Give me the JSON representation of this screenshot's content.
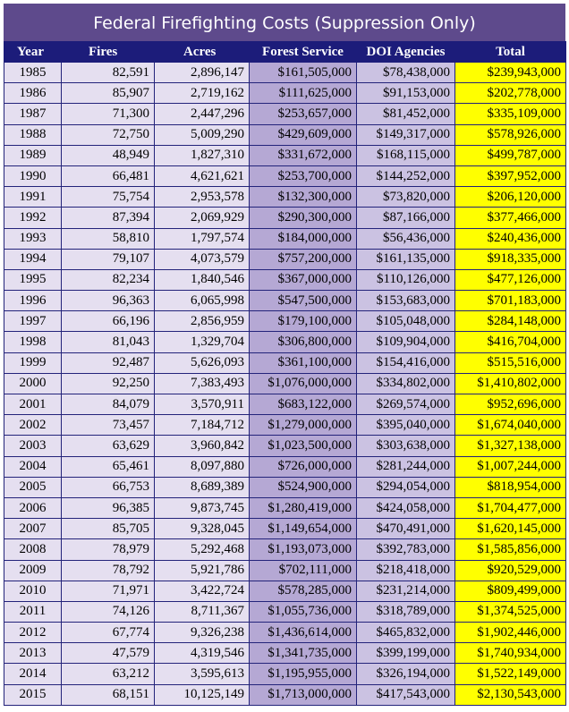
{
  "title": "Federal Firefighting Costs (Suppression Only)",
  "table": {
    "header": [
      "Year",
      "Fires",
      "Acres",
      "Forest Service",
      "DOI Agencies",
      "Total"
    ],
    "rows": [
      [
        "1985",
        "82,591",
        "2,896,147",
        "$161,505,000",
        "$78,438,000",
        "$239,943,000"
      ],
      [
        "1986",
        "85,907",
        "2,719,162",
        "$111,625,000",
        "$91,153,000",
        "$202,778,000"
      ],
      [
        "1987",
        "71,300",
        "2,447,296",
        "$253,657,000",
        "$81,452,000",
        "$335,109,000"
      ],
      [
        "1988",
        "72,750",
        "5,009,290",
        "$429,609,000",
        "$149,317,000",
        "$578,926,000"
      ],
      [
        "1989",
        "48,949",
        "1,827,310",
        "$331,672,000",
        "$168,115,000",
        "$499,787,000"
      ],
      [
        "1990",
        "66,481",
        "4,621,621",
        "$253,700,000",
        "$144,252,000",
        "$397,952,000"
      ],
      [
        "1991",
        "75,754",
        "2,953,578",
        "$132,300,000",
        "$73,820,000",
        "$206,120,000"
      ],
      [
        "1992",
        "87,394",
        "2,069,929",
        "$290,300,000",
        "$87,166,000",
        "$377,466,000"
      ],
      [
        "1993",
        "58,810",
        "1,797,574",
        "$184,000,000",
        "$56,436,000",
        "$240,436,000"
      ],
      [
        "1994",
        "79,107",
        "4,073,579",
        "$757,200,000",
        "$161,135,000",
        "$918,335,000"
      ],
      [
        "1995",
        "82,234",
        "1,840,546",
        "$367,000,000",
        "$110,126,000",
        "$477,126,000"
      ],
      [
        "1996",
        "96,363",
        "6,065,998",
        "$547,500,000",
        "$153,683,000",
        "$701,183,000"
      ],
      [
        "1997",
        "66,196",
        "2,856,959",
        "$179,100,000",
        "$105,048,000",
        "$284,148,000"
      ],
      [
        "1998",
        "81,043",
        "1,329,704",
        "$306,800,000",
        "$109,904,000",
        "$416,704,000"
      ],
      [
        "1999",
        "92,487",
        "5,626,093",
        "$361,100,000",
        "$154,416,000",
        "$515,516,000"
      ],
      [
        "2000",
        "92,250",
        "7,383,493",
        "$1,076,000,000",
        "$334,802,000",
        "$1,410,802,000"
      ],
      [
        "2001",
        "84,079",
        "3,570,911",
        "$683,122,000",
        "$269,574,000",
        "$952,696,000"
      ],
      [
        "2002",
        "73,457",
        "7,184,712",
        "$1,279,000,000",
        "$395,040,000",
        "$1,674,040,000"
      ],
      [
        "2003",
        "63,629",
        "3,960,842",
        "$1,023,500,000",
        "$303,638,000",
        "$1,327,138,000"
      ],
      [
        "2004",
        "65,461",
        "8,097,880",
        "$726,000,000",
        "$281,244,000",
        "$1,007,244,000"
      ],
      [
        "2005",
        "66,753",
        "8,689,389",
        "$524,900,000",
        "$294,054,000",
        "$818,954,000"
      ],
      [
        "2006",
        "96,385",
        "9,873,745",
        "$1,280,419,000",
        "$424,058,000",
        "$1,704,477,000"
      ],
      [
        "2007",
        "85,705",
        "9,328,045",
        "$1,149,654,000",
        "$470,491,000",
        "$1,620,145,000"
      ],
      [
        "2008",
        "78,979",
        "5,292,468",
        "$1,193,073,000",
        "$392,783,000",
        "$1,585,856,000"
      ],
      [
        "2009",
        "78,792",
        "5,921,786",
        "$702,111,000",
        "$218,418,000",
        "$920,529,000"
      ],
      [
        "2010",
        "71,971",
        "3,422,724",
        "$578,285,000",
        "$231,214,000",
        "$809,499,000"
      ],
      [
        "2011",
        "74,126",
        "8,711,367",
        "$1,055,736,000",
        "$318,789,000",
        "$1,374,525,000"
      ],
      [
        "2012",
        "67,774",
        "9,326,238",
        "$1,436,614,000",
        "$465,832,000",
        "$1,902,446,000"
      ],
      [
        "2013",
        "47,579",
        "4,319,546",
        "$1,341,735,000",
        "$399,199,000",
        "$1,740,934,000"
      ],
      [
        "2014",
        "63,212",
        "3,595,613",
        "$1,195,955,000",
        "$326,194,000",
        "$1,522,149,000"
      ],
      [
        "2015",
        "68,151",
        "10,125,149",
        "$1,713,000,000",
        "$417,543,000",
        "$2,130,543,000"
      ]
    ]
  }
}
